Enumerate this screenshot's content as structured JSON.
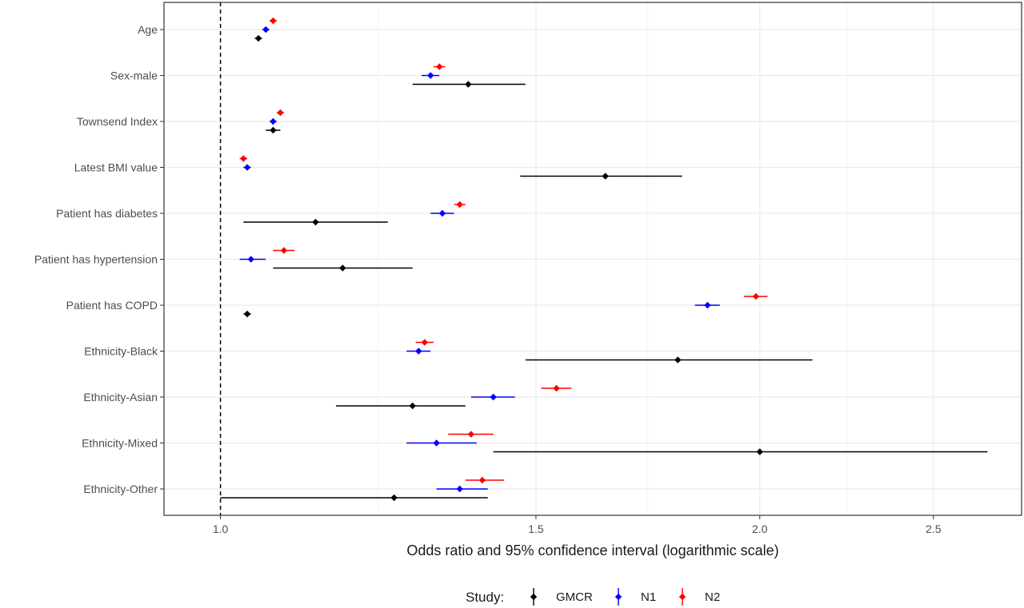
{
  "chart_data": {
    "type": "forest",
    "title": "",
    "xlabel": "Odds ratio and 95% confidence interval (logarithmic scale)",
    "ylabel": "",
    "x_scale": "log",
    "xlim": [
      0.93,
      2.8
    ],
    "x_ticks": [
      {
        "value": 1.0,
        "label": "1.0"
      },
      {
        "value": 1.5,
        "label": "1.5"
      },
      {
        "value": 2.0,
        "label": "2.0"
      },
      {
        "value": 2.5,
        "label": "2.5"
      }
    ],
    "reference_line": 1.0,
    "grid": true,
    "legend_position": "bottom",
    "legend_title": "Study:",
    "categories": [
      "Age",
      "Sex-male",
      "Townsend Index",
      "Latest BMI value",
      "Patient has diabetes",
      "Patient has hypertension",
      "Patient has COPD",
      "Ethnicity-Black",
      "Ethnicity-Asian",
      "Ethnicity-Mixed",
      "Ethnicity-Other"
    ],
    "series": [
      {
        "name": "GMCR",
        "color": "#000000",
        "points": [
          {
            "est": 1.05,
            "lo": 1.045,
            "hi": 1.055
          },
          {
            "est": 1.375,
            "lo": 1.28,
            "hi": 1.48
          },
          {
            "est": 1.07,
            "lo": 1.06,
            "hi": 1.08
          },
          {
            "est": 1.64,
            "lo": 1.47,
            "hi": 1.81
          },
          {
            "est": 1.13,
            "lo": 1.03,
            "hi": 1.24
          },
          {
            "est": 1.17,
            "lo": 1.07,
            "hi": 1.28
          },
          {
            "est": 1.035,
            "lo": 1.03,
            "hi": 1.04
          },
          {
            "est": 1.8,
            "lo": 1.48,
            "hi": 2.14
          },
          {
            "est": 1.28,
            "lo": 1.16,
            "hi": 1.37
          },
          {
            "est": 2.0,
            "lo": 1.42,
            "hi": 2.68
          },
          {
            "est": 1.25,
            "lo": 1.0,
            "hi": 1.41
          }
        ]
      },
      {
        "name": "N1",
        "color": "#0000ff",
        "points": [
          {
            "est": 1.06,
            "lo": 1.055,
            "hi": 1.065
          },
          {
            "est": 1.31,
            "lo": 1.295,
            "hi": 1.325
          },
          {
            "est": 1.07,
            "lo": 1.065,
            "hi": 1.075
          },
          {
            "est": 1.035,
            "lo": 1.03,
            "hi": 1.04
          },
          {
            "est": 1.33,
            "lo": 1.31,
            "hi": 1.35
          },
          {
            "est": 1.04,
            "lo": 1.025,
            "hi": 1.06
          },
          {
            "est": 1.87,
            "lo": 1.84,
            "hi": 1.9
          },
          {
            "est": 1.29,
            "lo": 1.27,
            "hi": 1.31
          },
          {
            "est": 1.42,
            "lo": 1.38,
            "hi": 1.46
          },
          {
            "est": 1.32,
            "lo": 1.27,
            "hi": 1.39
          },
          {
            "est": 1.36,
            "lo": 1.32,
            "hi": 1.41
          }
        ]
      },
      {
        "name": "N2",
        "color": "#ff0000",
        "points": [
          {
            "est": 1.07,
            "lo": 1.065,
            "hi": 1.075
          },
          {
            "est": 1.325,
            "lo": 1.315,
            "hi": 1.335
          },
          {
            "est": 1.08,
            "lo": 1.075,
            "hi": 1.085
          },
          {
            "est": 1.03,
            "lo": 1.025,
            "hi": 1.035
          },
          {
            "est": 1.36,
            "lo": 1.35,
            "hi": 1.37
          },
          {
            "est": 1.085,
            "lo": 1.07,
            "hi": 1.1
          },
          {
            "est": 1.99,
            "lo": 1.96,
            "hi": 2.02
          },
          {
            "est": 1.3,
            "lo": 1.285,
            "hi": 1.315
          },
          {
            "est": 1.54,
            "lo": 1.51,
            "hi": 1.57
          },
          {
            "est": 1.38,
            "lo": 1.34,
            "hi": 1.42
          },
          {
            "est": 1.4,
            "lo": 1.37,
            "hi": 1.44
          }
        ]
      }
    ]
  }
}
